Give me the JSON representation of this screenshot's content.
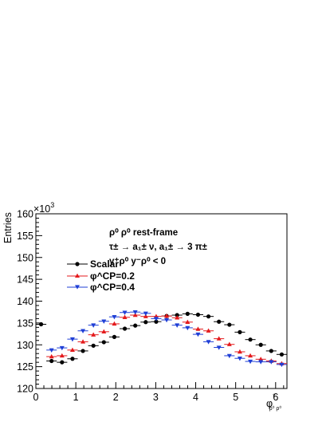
{
  "chart_data": {
    "type": "scatter",
    "ylabel": "Entries",
    "y_multiplier_label": "×10",
    "y_multiplier_exponent": "3",
    "xlabel_main": "φ",
    "xlabel_sub": "ρ⁰ ρ⁰",
    "xlabel_sup": "*",
    "xlim": [
      0,
      6.2832
    ],
    "ylim": [
      120,
      160
    ],
    "x_ticks": [
      0,
      1,
      2,
      3,
      4,
      5,
      6
    ],
    "y_ticks": [
      120,
      125,
      130,
      135,
      140,
      145,
      150,
      155,
      160
    ],
    "bin_half_width": 0.1309,
    "grid": false,
    "legend_position": "upper-left inside plot",
    "annotations": [
      "ρ⁰ ρ⁰  rest-frame",
      "τ± → a₁± ν, a₁± → 3 π±",
      "y⁺ρ⁰ y⁻ρ⁰ < 0"
    ],
    "x": [
      0.1309,
      0.3927,
      0.6545,
      0.9163,
      1.1781,
      1.4399,
      1.7017,
      1.9635,
      2.2253,
      2.4871,
      2.7489,
      3.0107,
      3.2725,
      3.5343,
      3.7961,
      4.0579,
      4.3197,
      4.5815,
      4.8433,
      5.1051,
      5.3669,
      5.6287,
      5.8905,
      6.1523
    ],
    "series": [
      {
        "name": "Scalar",
        "color": "#000000",
        "marker": "circle",
        "y": [
          134.7,
          126.3,
          126.0,
          126.8,
          128.6,
          129.8,
          130.6,
          131.8,
          133.7,
          134.4,
          135.2,
          135.3,
          136.6,
          136.8,
          137.1,
          136.9,
          136.5,
          135.3,
          134.6,
          132.9,
          131.2,
          130.0,
          128.6,
          127.8
        ]
      },
      {
        "name": "φ^CP=0.2",
        "color": "#e41a1c",
        "marker": "triangle-up",
        "y": [
          null,
          127.3,
          127.5,
          128.8,
          130.7,
          132.3,
          133.0,
          134.8,
          136.3,
          136.8,
          136.5,
          136.5,
          136.6,
          136.2,
          135.2,
          133.6,
          133.2,
          131.4,
          130.1,
          128.4,
          127.5,
          126.7,
          126.3,
          125.7
        ]
      },
      {
        "name": "φ^CP=0.4",
        "color": "#1f3fd6",
        "marker": "triangle-down",
        "y": [
          null,
          128.8,
          129.3,
          131.3,
          133.2,
          134.5,
          135.4,
          136.4,
          137.4,
          137.5,
          137.2,
          136.0,
          135.7,
          134.5,
          133.9,
          132.4,
          130.7,
          129.4,
          127.5,
          126.9,
          126.2,
          126.1,
          126.1,
          125.5
        ]
      }
    ]
  }
}
